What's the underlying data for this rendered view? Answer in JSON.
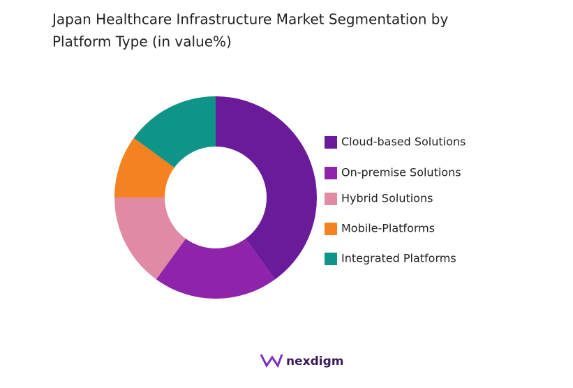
{
  "chart_data": {
    "type": "donut",
    "title_lines": [
      "Japan Healthcare Infrastructure Market Segmentation by",
      "Platform Type (in value%)"
    ],
    "categories": [
      "Cloud-based Solutions",
      "On-premise Solutions",
      "Hybrid Solutions",
      "Mobile-Platforms",
      "Integrated Platforms"
    ],
    "values": [
      40,
      20,
      15,
      10,
      15
    ],
    "colors": [
      "#6a1b9a",
      "#8e24aa",
      "#e08aa4",
      "#f58220",
      "#0f9488"
    ],
    "legend": "right"
  },
  "brand": "nexdigm"
}
